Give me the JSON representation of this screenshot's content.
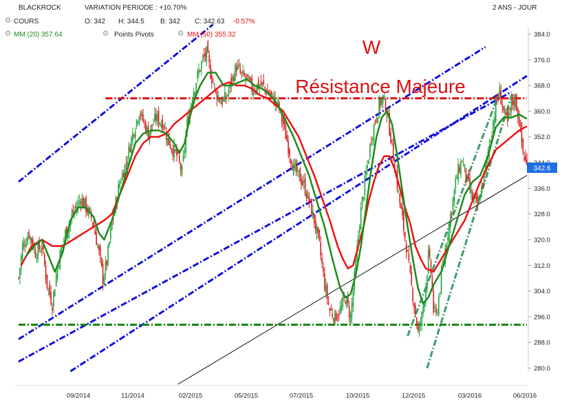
{
  "header": {
    "ticker": "BLACKROCK",
    "variation": "VARIATION PERIODE : +10.70%",
    "period": "2 ANS - JOUR",
    "cours_label": "COURS",
    "open": "O: 342",
    "high": "H: 344.5",
    "low": "B: 342",
    "close": "C: 342.63",
    "change": "-0.57%",
    "mm20": "MM (20) 357.64",
    "pivots": "Points Pivots",
    "mm50": "MM (50) 355.32"
  },
  "annotations": {
    "w_label": "W",
    "resistance_label": "Résistance Majeure"
  },
  "price_tag": "342.6",
  "colors": {
    "up_candle": "#1fa33a",
    "down_candle": "#d61a1a",
    "mm20": "#1c8a1c",
    "mm50": "#ee1111",
    "channel": "#1010dd",
    "resistance": "#dd1111",
    "support": "#118811",
    "steep_trend": "#3f9c6a",
    "trendline": "#111111",
    "price_tag_bg": "#1f6fe0"
  },
  "chart_data": {
    "type": "candlestick",
    "title": "BLACKROCK",
    "ylim": [
      278,
      388
    ],
    "y_ticks": [
      "384.0",
      "376.0",
      "368.0",
      "360.0",
      "352.0",
      "344.0",
      "336.0",
      "328.0",
      "320.0",
      "312.0",
      "304.0",
      "296.0",
      "288.0",
      "280.0"
    ],
    "x_ticks": [
      "09/2014",
      "11/2014",
      "02/2015",
      "05/2015",
      "07/2015",
      "10/2015",
      "12/2015",
      "03/2016",
      "06/2016"
    ],
    "last_price": 342.6,
    "resistance_level": 364.0,
    "support_level": 293.5,
    "close_anchors": [
      [
        0,
        308
      ],
      [
        3,
        318
      ],
      [
        8,
        322
      ],
      [
        13,
        316
      ],
      [
        18,
        318
      ],
      [
        22,
        306
      ],
      [
        26,
        300
      ],
      [
        30,
        312
      ],
      [
        36,
        322
      ],
      [
        42,
        328
      ],
      [
        48,
        333
      ],
      [
        52,
        330
      ],
      [
        57,
        326
      ],
      [
        61,
        318
      ],
      [
        65,
        308
      ],
      [
        68,
        313
      ],
      [
        72,
        325
      ],
      [
        78,
        338
      ],
      [
        83,
        344
      ],
      [
        88,
        353
      ],
      [
        93,
        360
      ],
      [
        96,
        357
      ],
      [
        100,
        353
      ],
      [
        106,
        358
      ],
      [
        112,
        356
      ],
      [
        115,
        351
      ],
      [
        118,
        349
      ],
      [
        122,
        346
      ],
      [
        126,
        341
      ],
      [
        130,
        356
      ],
      [
        134,
        365
      ],
      [
        138,
        371
      ],
      [
        142,
        376
      ],
      [
        145,
        378
      ],
      [
        148,
        372
      ],
      [
        152,
        366
      ],
      [
        156,
        363
      ],
      [
        160,
        364
      ],
      [
        164,
        369
      ],
      [
        168,
        374
      ],
      [
        172,
        371
      ],
      [
        176,
        370
      ],
      [
        180,
        367
      ],
      [
        184,
        368
      ],
      [
        188,
        368
      ],
      [
        192,
        366
      ],
      [
        196,
        364
      ],
      [
        200,
        362
      ],
      [
        204,
        356
      ],
      [
        208,
        349
      ],
      [
        212,
        342
      ],
      [
        216,
        340
      ],
      [
        220,
        337
      ],
      [
        224,
        332
      ],
      [
        228,
        326
      ],
      [
        232,
        318
      ],
      [
        236,
        306
      ],
      [
        240,
        298
      ],
      [
        244,
        296
      ],
      [
        248,
        298
      ],
      [
        252,
        302
      ],
      [
        256,
        296
      ],
      [
        260,
        312
      ],
      [
        263,
        326
      ],
      [
        266,
        335
      ],
      [
        269,
        343
      ],
      [
        272,
        352
      ],
      [
        275,
        357
      ],
      [
        278,
        362
      ],
      [
        281,
        364
      ],
      [
        284,
        360
      ],
      [
        287,
        352
      ],
      [
        290,
        343
      ],
      [
        293,
        334
      ],
      [
        296,
        326
      ],
      [
        299,
        318
      ],
      [
        302,
        308
      ],
      [
        305,
        300
      ],
      [
        308,
        291
      ],
      [
        311,
        296
      ],
      [
        314,
        306
      ],
      [
        316,
        315
      ],
      [
        318,
        310
      ],
      [
        320,
        298
      ],
      [
        322,
        296
      ],
      [
        326,
        308
      ],
      [
        330,
        320
      ],
      [
        334,
        330
      ],
      [
        338,
        340
      ],
      [
        342,
        345
      ],
      [
        346,
        338
      ],
      [
        350,
        333
      ],
      [
        354,
        330
      ],
      [
        356,
        334
      ],
      [
        360,
        342
      ],
      [
        364,
        352
      ],
      [
        368,
        362
      ],
      [
        371,
        366
      ],
      [
        374,
        360
      ],
      [
        377,
        356
      ],
      [
        380,
        362
      ],
      [
        383,
        364
      ],
      [
        386,
        357
      ],
      [
        389,
        347
      ],
      [
        392,
        342.6
      ]
    ],
    "mm20_anchors": [
      [
        6,
        315
      ],
      [
        12,
        318
      ],
      [
        18,
        320
      ],
      [
        24,
        314
      ],
      [
        28,
        310
      ],
      [
        34,
        316
      ],
      [
        40,
        326
      ],
      [
        46,
        330
      ],
      [
        52,
        330
      ],
      [
        58,
        327
      ],
      [
        62,
        322
      ],
      [
        66,
        320
      ],
      [
        72,
        326
      ],
      [
        78,
        334
      ],
      [
        84,
        342
      ],
      [
        90,
        350
      ],
      [
        96,
        353
      ],
      [
        102,
        354
      ],
      [
        108,
        354
      ],
      [
        114,
        353
      ],
      [
        120,
        350
      ],
      [
        124,
        347
      ],
      [
        128,
        350
      ],
      [
        132,
        358
      ],
      [
        136,
        364
      ],
      [
        140,
        368
      ],
      [
        146,
        372
      ],
      [
        152,
        372
      ],
      [
        158,
        368
      ],
      [
        164,
        368
      ],
      [
        170,
        369
      ],
      [
        176,
        370
      ],
      [
        182,
        368
      ],
      [
        188,
        367
      ],
      [
        194,
        365
      ],
      [
        200,
        362
      ],
      [
        206,
        357
      ],
      [
        212,
        352
      ],
      [
        218,
        346
      ],
      [
        224,
        340
      ],
      [
        230,
        332
      ],
      [
        236,
        324
      ],
      [
        242,
        314
      ],
      [
        248,
        305
      ],
      [
        252,
        302
      ],
      [
        256,
        303
      ],
      [
        260,
        309
      ],
      [
        264,
        318
      ],
      [
        268,
        330
      ],
      [
        272,
        342
      ],
      [
        276,
        352
      ],
      [
        280,
        358
      ],
      [
        284,
        360
      ],
      [
        288,
        356
      ],
      [
        292,
        346
      ],
      [
        296,
        335
      ],
      [
        300,
        324
      ],
      [
        304,
        314
      ],
      [
        308,
        305
      ],
      [
        312,
        300
      ],
      [
        316,
        302
      ],
      [
        320,
        306
      ],
      [
        326,
        310
      ],
      [
        332,
        318
      ],
      [
        338,
        326
      ],
      [
        344,
        334
      ],
      [
        350,
        338
      ],
      [
        356,
        340
      ],
      [
        362,
        346
      ],
      [
        368,
        355
      ],
      [
        374,
        358
      ],
      [
        380,
        358
      ],
      [
        386,
        359
      ],
      [
        392,
        357.6
      ]
    ],
    "mm50_anchors": [
      [
        2,
        312
      ],
      [
        10,
        318
      ],
      [
        18,
        320
      ],
      [
        26,
        318
      ],
      [
        34,
        318
      ],
      [
        42,
        320
      ],
      [
        50,
        322
      ],
      [
        58,
        324
      ],
      [
        66,
        326
      ],
      [
        72,
        328
      ],
      [
        78,
        334
      ],
      [
        84,
        340
      ],
      [
        90,
        346
      ],
      [
        96,
        350
      ],
      [
        102,
        352
      ],
      [
        108,
        352
      ],
      [
        114,
        353
      ],
      [
        120,
        356
      ],
      [
        126,
        358
      ],
      [
        132,
        360
      ],
      [
        138,
        362
      ],
      [
        144,
        364
      ],
      [
        150,
        366
      ],
      [
        156,
        368
      ],
      [
        162,
        369
      ],
      [
        168,
        368
      ],
      [
        174,
        368
      ],
      [
        180,
        367
      ],
      [
        186,
        365
      ],
      [
        192,
        364
      ],
      [
        198,
        362
      ],
      [
        204,
        360
      ],
      [
        210,
        356
      ],
      [
        216,
        352
      ],
      [
        222,
        346
      ],
      [
        228,
        340
      ],
      [
        234,
        333
      ],
      [
        240,
        326
      ],
      [
        246,
        318
      ],
      [
        250,
        314
      ],
      [
        254,
        311
      ],
      [
        258,
        312
      ],
      [
        262,
        318
      ],
      [
        266,
        324
      ],
      [
        270,
        332
      ],
      [
        274,
        338
      ],
      [
        278,
        343
      ],
      [
        282,
        346
      ],
      [
        286,
        346
      ],
      [
        290,
        342
      ],
      [
        294,
        336
      ],
      [
        298,
        330
      ],
      [
        302,
        325
      ],
      [
        306,
        318
      ],
      [
        310,
        314
      ],
      [
        314,
        311
      ],
      [
        320,
        310
      ],
      [
        326,
        314
      ],
      [
        332,
        318
      ],
      [
        338,
        322
      ],
      [
        344,
        326
      ],
      [
        350,
        332
      ],
      [
        356,
        338
      ],
      [
        362,
        343
      ],
      [
        368,
        348
      ],
      [
        374,
        350
      ],
      [
        380,
        352
      ],
      [
        386,
        354
      ],
      [
        392,
        355.3
      ]
    ],
    "channel_lines": [
      {
        "from": [
          0,
          338
        ],
        "to": [
          150,
          387
        ]
      },
      {
        "from": [
          0,
          289
        ],
        "to": [
          360,
          380
        ]
      },
      {
        "from": [
          0,
          282
        ],
        "to": [
          380,
          366
        ]
      },
      {
        "from": [
          40,
          279
        ],
        "to": [
          392,
          371
        ]
      }
    ],
    "horizontal_lines": [
      {
        "kind": "resistance",
        "level": 364.0,
        "from": 67,
        "to": 392
      },
      {
        "kind": "support",
        "level": 293.5,
        "from": 0,
        "to": 392
      }
    ],
    "trend_lines": [
      {
        "kind": "steep",
        "from": [
          300,
          290
        ],
        "to": [
          370,
          365
        ]
      },
      {
        "kind": "steep",
        "from": [
          315,
          280
        ],
        "to": [
          381,
          366
        ]
      },
      {
        "kind": "long",
        "from": [
          123,
          275
        ],
        "to": [
          392,
          340
        ]
      }
    ]
  }
}
